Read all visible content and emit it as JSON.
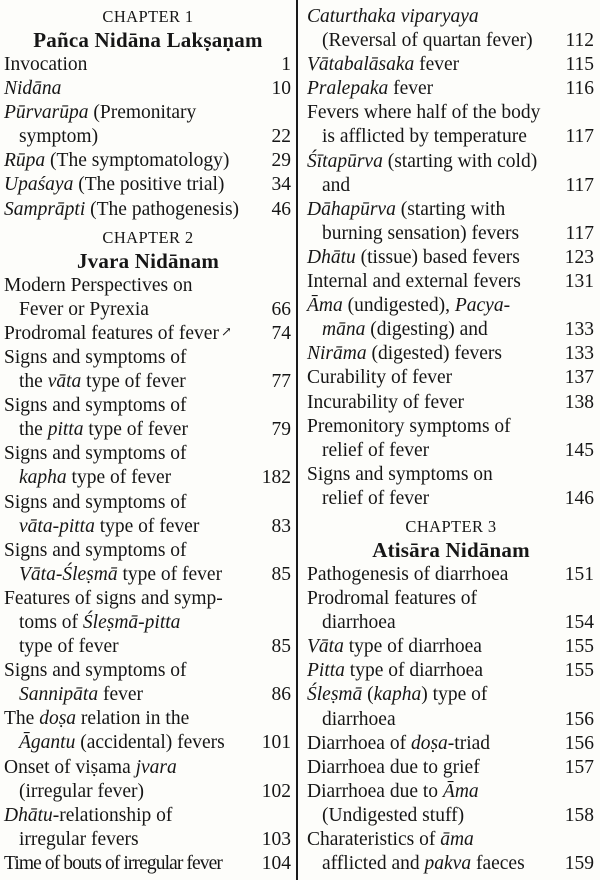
{
  "page": {
    "kind": "book-table-of-contents",
    "background_color": "#fdfdfa",
    "ink_color": "#161616",
    "divider_color": "#1a1a1a"
  },
  "columns": [
    {
      "name": "left",
      "rows": [
        {
          "type": "chapter_number",
          "text": "CHAPTER 1"
        },
        {
          "type": "chapter_title",
          "text": "Pañca Nidāna Lakṣaṇam"
        },
        {
          "segments": [
            {
              "text": "Invocation"
            }
          ],
          "page": "1"
        },
        {
          "segments": [
            {
              "text": "Nidāna",
              "italic": true
            }
          ],
          "page": "10"
        },
        {
          "segments": [
            {
              "text": "Pūrvarūpa",
              "italic": true
            },
            {
              "text": " (Premonitary"
            }
          ]
        },
        {
          "indent": true,
          "segments": [
            {
              "text": "symptom)"
            }
          ],
          "page": "22"
        },
        {
          "segments": [
            {
              "text": "Rūpa",
              "italic": true
            },
            {
              "text": " (The symptomatology)"
            }
          ],
          "page": "29"
        },
        {
          "segments": [
            {
              "text": "Upaśaya",
              "italic": true
            },
            {
              "text": " (The positive trial)"
            }
          ],
          "page": "34"
        },
        {
          "segments": [
            {
              "text": "Samprāpti",
              "italic": true
            },
            {
              "text": " (The pathogenesis)"
            }
          ],
          "page": "46"
        },
        {
          "type": "chapter_number",
          "text": "CHAPTER 2"
        },
        {
          "type": "chapter_title",
          "text": "Jvara Nidānam"
        },
        {
          "segments": [
            {
              "text": "Modern Perspectives on"
            }
          ]
        },
        {
          "indent": true,
          "segments": [
            {
              "text": "Fever or Pyrexia"
            }
          ],
          "page": "66"
        },
        {
          "segments": [
            {
              "text": "Prodromal features of fever"
            },
            {
              "text": "↗",
              "mark": true
            }
          ],
          "page": "74"
        },
        {
          "segments": [
            {
              "text": "Signs and symptoms of"
            }
          ]
        },
        {
          "indent": true,
          "segments": [
            {
              "text": "the "
            },
            {
              "text": "vāta",
              "italic": true
            },
            {
              "text": " type of fever"
            }
          ],
          "page": "77"
        },
        {
          "segments": [
            {
              "text": "Signs and symptoms of"
            }
          ]
        },
        {
          "indent": true,
          "segments": [
            {
              "text": "the "
            },
            {
              "text": "pitta",
              "italic": true
            },
            {
              "text": " type of fever"
            }
          ],
          "page": "79"
        },
        {
          "segments": [
            {
              "text": "Signs and symptoms of"
            }
          ]
        },
        {
          "indent": true,
          "segments": [
            {
              "text": "kapha",
              "italic": true
            },
            {
              "text": " type of fever"
            }
          ],
          "page": "182"
        },
        {
          "segments": [
            {
              "text": "Signs and symptoms of"
            }
          ]
        },
        {
          "indent": true,
          "segments": [
            {
              "text": "vāta-pitta",
              "italic": true
            },
            {
              "text": " type of fever"
            }
          ],
          "page": "83"
        },
        {
          "segments": [
            {
              "text": "Signs and symptoms of"
            }
          ]
        },
        {
          "indent": true,
          "segments": [
            {
              "text": "Vāta-Śleṣmā",
              "italic": true
            },
            {
              "text": " type of fever"
            }
          ],
          "page": "85"
        },
        {
          "segments": [
            {
              "text": "Features of signs and symp-"
            }
          ]
        },
        {
          "indent": true,
          "segments": [
            {
              "text": "toms of "
            },
            {
              "text": "Śleṣmā-pitta",
              "italic": true
            }
          ]
        },
        {
          "indent": true,
          "segments": [
            {
              "text": "type of fever"
            }
          ],
          "page": "85"
        },
        {
          "segments": [
            {
              "text": "Signs and symptoms of"
            }
          ]
        },
        {
          "indent": true,
          "segments": [
            {
              "text": "Sannipāta",
              "italic": true
            },
            {
              "text": " fever"
            }
          ],
          "page": "86"
        },
        {
          "segments": [
            {
              "text": "The "
            },
            {
              "text": "doṣa",
              "italic": true
            },
            {
              "text": " relation in the"
            }
          ]
        },
        {
          "indent": true,
          "segments": [
            {
              "text": "Āgantu",
              "italic": true
            },
            {
              "text": " (accidental) fevers"
            }
          ],
          "page": "101"
        },
        {
          "segments": [
            {
              "text": "Onset of viṣama "
            },
            {
              "text": "jvara",
              "italic": true
            }
          ]
        },
        {
          "indent": true,
          "segments": [
            {
              "text": "(irregular fever)"
            }
          ],
          "page": "102"
        },
        {
          "segments": [
            {
              "text": "Dhātu",
              "italic": true
            },
            {
              "text": "-relationship of"
            }
          ]
        },
        {
          "indent": true,
          "segments": [
            {
              "text": "irregular fevers"
            }
          ],
          "page": "103"
        },
        {
          "tight": true,
          "segments": [
            {
              "text": "Time of bouts of irregular fever"
            }
          ],
          "page": "104"
        }
      ]
    },
    {
      "name": "right",
      "rows": [
        {
          "segments": [
            {
              "text": "Caturthaka viparyaya",
              "italic": true
            }
          ]
        },
        {
          "indent": true,
          "segments": [
            {
              "text": "(Reversal of quartan fever)"
            }
          ],
          "page": "112"
        },
        {
          "segments": [
            {
              "text": "Vātabalāsaka",
              "italic": true
            },
            {
              "text": " fever"
            }
          ],
          "page": "115"
        },
        {
          "segments": [
            {
              "text": "Pralepaka",
              "italic": true
            },
            {
              "text": " fever"
            }
          ],
          "page": "116"
        },
        {
          "segments": [
            {
              "text": "Fevers where half of the body"
            }
          ]
        },
        {
          "indent": true,
          "segments": [
            {
              "text": "is afflicted by temperature"
            }
          ],
          "page": "117"
        },
        {
          "segments": [
            {
              "text": "Śītapūrva",
              "italic": true
            },
            {
              "text": " (starting with cold)"
            }
          ]
        },
        {
          "indent": true,
          "segments": [
            {
              "text": "and"
            }
          ],
          "page": "117"
        },
        {
          "segments": [
            {
              "text": "Dāhapūrva",
              "italic": true
            },
            {
              "text": " (starting with"
            }
          ]
        },
        {
          "indent": true,
          "segments": [
            {
              "text": "burning sensation) fevers"
            }
          ],
          "page": "117"
        },
        {
          "segments": [
            {
              "text": "Dhātu",
              "italic": true
            },
            {
              "text": " (tissue) based fevers"
            }
          ],
          "page": "123"
        },
        {
          "segments": [
            {
              "text": "Internal and external fevers"
            }
          ],
          "page": "131"
        },
        {
          "segments": [
            {
              "text": "Āma",
              "italic": true
            },
            {
              "text": " (undigested), "
            },
            {
              "text": "Pacya-",
              "italic": true
            }
          ]
        },
        {
          "indent": true,
          "segments": [
            {
              "text": "māna",
              "italic": true
            },
            {
              "text": " (digesting) and"
            }
          ],
          "page": "133"
        },
        {
          "segments": [
            {
              "text": "Nirāma",
              "italic": true
            },
            {
              "text": " (digested) fevers"
            }
          ],
          "page": "133"
        },
        {
          "segments": [
            {
              "text": "Curability of fever"
            }
          ],
          "page": "137"
        },
        {
          "segments": [
            {
              "text": "Incurability of fever"
            }
          ],
          "page": "138"
        },
        {
          "segments": [
            {
              "text": "Premonitory symptoms of"
            }
          ]
        },
        {
          "indent": true,
          "segments": [
            {
              "text": "relief of fever"
            }
          ],
          "page": "145"
        },
        {
          "segments": [
            {
              "text": "Signs and symptoms on"
            }
          ]
        },
        {
          "indent": true,
          "segments": [
            {
              "text": "relief of fever"
            }
          ],
          "page": "146"
        },
        {
          "type": "chapter_number",
          "text": "CHAPTER 3"
        },
        {
          "type": "chapter_title",
          "text": "Atisāra Nidānam"
        },
        {
          "segments": [
            {
              "text": "Pathogenesis of diarrhoea"
            }
          ],
          "page": "151"
        },
        {
          "segments": [
            {
              "text": "Prodromal features of"
            }
          ]
        },
        {
          "indent": true,
          "segments": [
            {
              "text": "diarrhoea"
            }
          ],
          "page": "154"
        },
        {
          "segments": [
            {
              "text": "Vāta",
              "italic": true
            },
            {
              "text": " type of diarrhoea"
            }
          ],
          "page": "155"
        },
        {
          "segments": [
            {
              "text": "Pitta",
              "italic": true
            },
            {
              "text": " type of diarrhoea"
            }
          ],
          "page": "155"
        },
        {
          "segments": [
            {
              "text": "Śleṣmā",
              "italic": true
            },
            {
              "text": " ("
            },
            {
              "text": "kapha",
              "italic": true
            },
            {
              "text": ") type of"
            }
          ]
        },
        {
          "indent": true,
          "segments": [
            {
              "text": "diarrhoea"
            }
          ],
          "page": "156"
        },
        {
          "segments": [
            {
              "text": "Diarrhoea of "
            },
            {
              "text": "doṣa",
              "italic": true
            },
            {
              "text": "-triad"
            }
          ],
          "page": "156"
        },
        {
          "segments": [
            {
              "text": "Diarrhoea due to grief"
            }
          ],
          "page": "157"
        },
        {
          "segments": [
            {
              "text": "Diarrhoea due to "
            },
            {
              "text": "Āma",
              "italic": true
            }
          ]
        },
        {
          "indent": true,
          "segments": [
            {
              "text": "(Undigested stuff)"
            }
          ],
          "page": "158"
        },
        {
          "segments": [
            {
              "text": "Charateristics of "
            },
            {
              "text": "āma",
              "italic": true
            }
          ]
        },
        {
          "indent": true,
          "segments": [
            {
              "text": "afflicted and "
            },
            {
              "text": "pakva",
              "italic": true
            },
            {
              "text": " faeces"
            }
          ],
          "page": "159"
        }
      ]
    }
  ]
}
